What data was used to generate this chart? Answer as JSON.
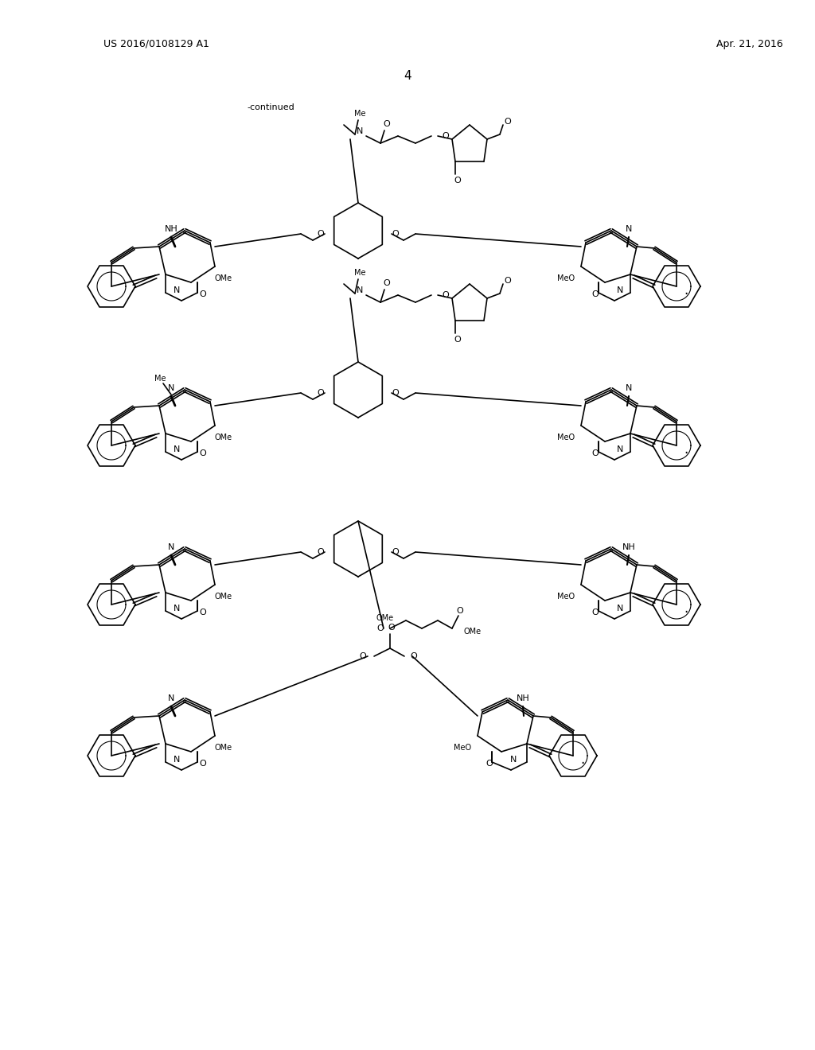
{
  "page_header_left": "US 2016/0108129 A1",
  "page_header_right": "Apr. 21, 2016",
  "page_number": "4",
  "continued_label": "-continued",
  "background_color": "#ffffff",
  "text_color": "#000000",
  "line_color": "#000000",
  "figsize": [
    10.24,
    13.2
  ],
  "dpi": 100
}
